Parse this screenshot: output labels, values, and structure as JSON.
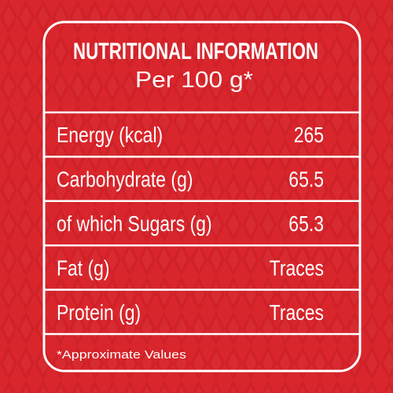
{
  "header": {
    "title": "NUTRITIONAL INFORMATION",
    "subtitle": "Per 100 g*"
  },
  "table": {
    "rows": [
      [
        "Energy (kcal)",
        "265"
      ],
      [
        "Carbohydrate (g)",
        "65.5"
      ],
      [
        "of which Sugars (g)",
        "65.3"
      ],
      [
        "Fat (g)",
        "Traces"
      ],
      [
        "Protein (g)",
        "Traces"
      ]
    ]
  },
  "footnote": "*Approximate Values"
}
